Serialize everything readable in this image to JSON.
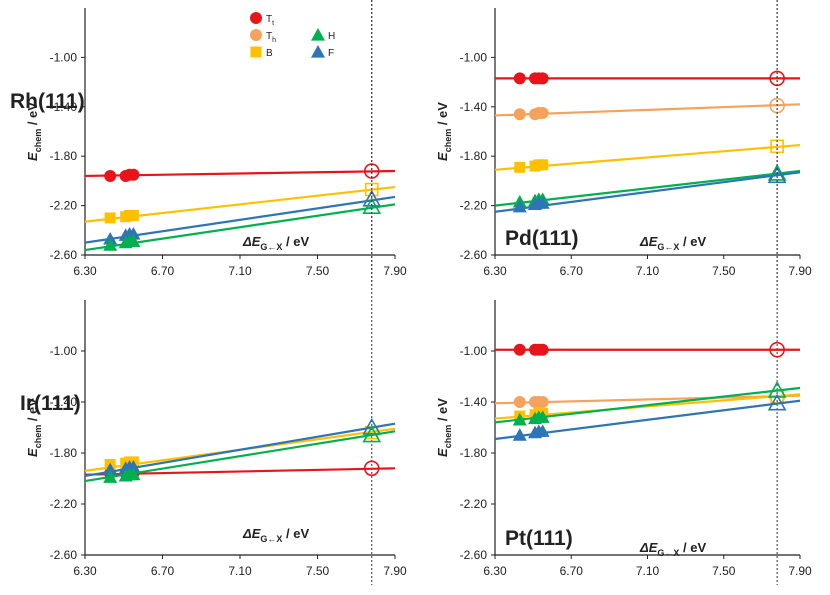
{
  "chart_data": {
    "type": "scatter",
    "xlabel": "ΔE",
    "xlabel_sub": "G←X",
    "xlabel_unit": " / eV",
    "ylabel": "E",
    "ylabel_sub": "chem",
    "ylabel_unit": " / eV",
    "xlim": [
      6.3,
      7.9
    ],
    "ylim": [
      -2.6,
      -0.6
    ],
    "xticks": [
      "6.30",
      "6.70",
      "7.10",
      "7.50",
      "7.90"
    ],
    "yticks": [
      "-2.60",
      "-2.20",
      "-1.80",
      "-1.40",
      "-1.00"
    ],
    "reference_line_x": 7.78,
    "legend": [
      {
        "key": "Tt",
        "label": "T",
        "sub": "t",
        "color": "#e8141b",
        "marker": "circle"
      },
      {
        "key": "Th",
        "label": "T",
        "sub": "h",
        "color": "#f5a25d",
        "marker": "circle"
      },
      {
        "key": "B",
        "label": "B",
        "sub": "",
        "color": "#ffc000",
        "marker": "square"
      },
      {
        "key": "H",
        "label": "H",
        "sub": "",
        "color": "#00b050",
        "marker": "triangle"
      },
      {
        "key": "F",
        "label": "F",
        "sub": "",
        "color": "#2e75b6",
        "marker": "triangle"
      }
    ],
    "panels": [
      {
        "label": "Rh(111)",
        "series": [
          {
            "key": "Tt",
            "x": [
              6.43,
              6.51,
              6.53,
              6.55
            ],
            "y": [
              -1.96,
              -1.96,
              -1.95,
              -1.95
            ],
            "open_x": 7.78,
            "open_y": -1.92,
            "fit": [
              [
                6.3,
                -1.96
              ],
              [
                7.9,
                -1.92
              ]
            ]
          },
          {
            "key": "B",
            "x": [
              6.43,
              6.51,
              6.53,
              6.55
            ],
            "y": [
              -2.3,
              -2.29,
              -2.28,
              -2.28
            ],
            "open_x": 7.78,
            "open_y": -2.07,
            "fit": [
              [
                6.3,
                -2.33
              ],
              [
                7.9,
                -2.05
              ]
            ]
          },
          {
            "key": "F",
            "x": [
              6.43,
              6.51,
              6.53,
              6.55
            ],
            "y": [
              -2.47,
              -2.44,
              -2.43,
              -2.43
            ],
            "open_x": 7.78,
            "open_y": -2.15,
            "fit": [
              [
                6.3,
                -2.5
              ],
              [
                7.9,
                -2.13
              ]
            ]
          },
          {
            "key": "H",
            "x": [
              6.43,
              6.51,
              6.53,
              6.55
            ],
            "y": [
              -2.52,
              -2.5,
              -2.49,
              -2.49
            ],
            "open_x": 7.78,
            "open_y": -2.21,
            "fit": [
              [
                6.3,
                -2.56
              ],
              [
                7.9,
                -2.19
              ]
            ]
          }
        ]
      },
      {
        "label": "Pd(111)",
        "series": [
          {
            "key": "Tt",
            "x": [
              6.43,
              6.51,
              6.53,
              6.55
            ],
            "y": [
              -1.17,
              -1.17,
              -1.17,
              -1.17
            ],
            "open_x": 7.78,
            "open_y": -1.17,
            "fit": [
              [
                6.3,
                -1.17
              ],
              [
                7.9,
                -1.17
              ]
            ]
          },
          {
            "key": "Th",
            "x": [
              6.43,
              6.51,
              6.53,
              6.55
            ],
            "y": [
              -1.46,
              -1.46,
              -1.45,
              -1.45
            ],
            "open_x": 7.78,
            "open_y": -1.39,
            "fit": [
              [
                6.3,
                -1.47
              ],
              [
                7.9,
                -1.38
              ]
            ]
          },
          {
            "key": "B",
            "x": [
              6.43,
              6.51,
              6.53,
              6.55
            ],
            "y": [
              -1.89,
              -1.88,
              -1.87,
              -1.87
            ],
            "open_x": 7.78,
            "open_y": -1.72,
            "fit": [
              [
                6.3,
                -1.91
              ],
              [
                7.9,
                -1.71
              ]
            ]
          },
          {
            "key": "H",
            "x": [
              6.43,
              6.51,
              6.53,
              6.55
            ],
            "y": [
              -2.17,
              -2.16,
              -2.15,
              -2.15
            ],
            "open_x": 7.78,
            "open_y": -1.94,
            "fit": [
              [
                6.3,
                -2.2
              ],
              [
                7.9,
                -1.92
              ]
            ]
          },
          {
            "key": "F",
            "x": [
              6.43,
              6.51,
              6.53,
              6.55
            ],
            "y": [
              -2.21,
              -2.19,
              -2.18,
              -2.18
            ],
            "open_x": 7.78,
            "open_y": -1.96,
            "fit": [
              [
                6.3,
                -2.25
              ],
              [
                7.9,
                -1.93
              ]
            ]
          }
        ]
      },
      {
        "label": "Ir(111)",
        "series": [
          {
            "key": "Tt",
            "x": [
              6.43,
              6.51,
              6.53,
              6.55
            ],
            "y": [
              -1.96,
              -1.96,
              -1.96,
              -1.96
            ],
            "open_x": 7.78,
            "open_y": -1.92,
            "fit": [
              [
                6.3,
                -1.97
              ],
              [
                7.9,
                -1.92
              ]
            ]
          },
          {
            "key": "B",
            "x": [
              6.43,
              6.51,
              6.53,
              6.55
            ],
            "y": [
              -1.89,
              -1.88,
              -1.87,
              -1.87
            ],
            "open_x": 7.78,
            "open_y": -1.64,
            "fit": [
              [
                6.3,
                -1.94
              ],
              [
                7.9,
                -1.61
              ]
            ]
          },
          {
            "key": "F",
            "x": [
              6.43,
              6.51,
              6.53,
              6.55
            ],
            "y": [
              -1.93,
              -1.92,
              -1.91,
              -1.91
            ],
            "open_x": 7.78,
            "open_y": -1.6,
            "fit": [
              [
                6.3,
                -1.98
              ],
              [
                7.9,
                -1.57
              ]
            ]
          },
          {
            "key": "H",
            "x": [
              6.43,
              6.51,
              6.53,
              6.55
            ],
            "y": [
              -1.99,
              -1.98,
              -1.97,
              -1.97
            ],
            "open_x": 7.78,
            "open_y": -1.66,
            "fit": [
              [
                6.3,
                -2.02
              ],
              [
                7.9,
                -1.63
              ]
            ]
          }
        ]
      },
      {
        "label": "Pt(111)",
        "series": [
          {
            "key": "Tt",
            "x": [
              6.43,
              6.51,
              6.53,
              6.55
            ],
            "y": [
              -0.99,
              -0.99,
              -0.99,
              -0.99
            ],
            "open_x": 7.78,
            "open_y": -0.99,
            "fit": [
              [
                6.3,
                -0.99
              ],
              [
                7.9,
                -0.99
              ]
            ]
          },
          {
            "key": "Th",
            "x": [
              6.43,
              6.51,
              6.53,
              6.55
            ],
            "y": [
              -1.4,
              -1.4,
              -1.4,
              -1.4
            ],
            "open_x": 7.78,
            "open_y": -1.36,
            "fit": [
              [
                6.3,
                -1.41
              ],
              [
                7.9,
                -1.35
              ]
            ]
          },
          {
            "key": "B",
            "x": [
              6.43,
              6.51,
              6.53,
              6.55
            ],
            "y": [
              -1.51,
              -1.5,
              -1.49,
              -1.49
            ],
            "open_x": 7.78,
            "open_y": -1.36,
            "fit": [
              [
                6.3,
                -1.53
              ],
              [
                7.9,
                -1.34
              ]
            ]
          },
          {
            "key": "H",
            "x": [
              6.43,
              6.51,
              6.53,
              6.55
            ],
            "y": [
              -1.54,
              -1.53,
              -1.52,
              -1.52
            ],
            "open_x": 7.78,
            "open_y": -1.31,
            "fit": [
              [
                6.3,
                -1.56
              ],
              [
                7.9,
                -1.29
              ]
            ]
          },
          {
            "key": "F",
            "x": [
              6.43,
              6.51,
              6.53,
              6.55
            ],
            "y": [
              -1.66,
              -1.64,
              -1.63,
              -1.63
            ],
            "open_x": 7.78,
            "open_y": -1.41,
            "fit": [
              [
                6.3,
                -1.69
              ],
              [
                7.9,
                -1.39
              ]
            ]
          }
        ]
      }
    ]
  }
}
